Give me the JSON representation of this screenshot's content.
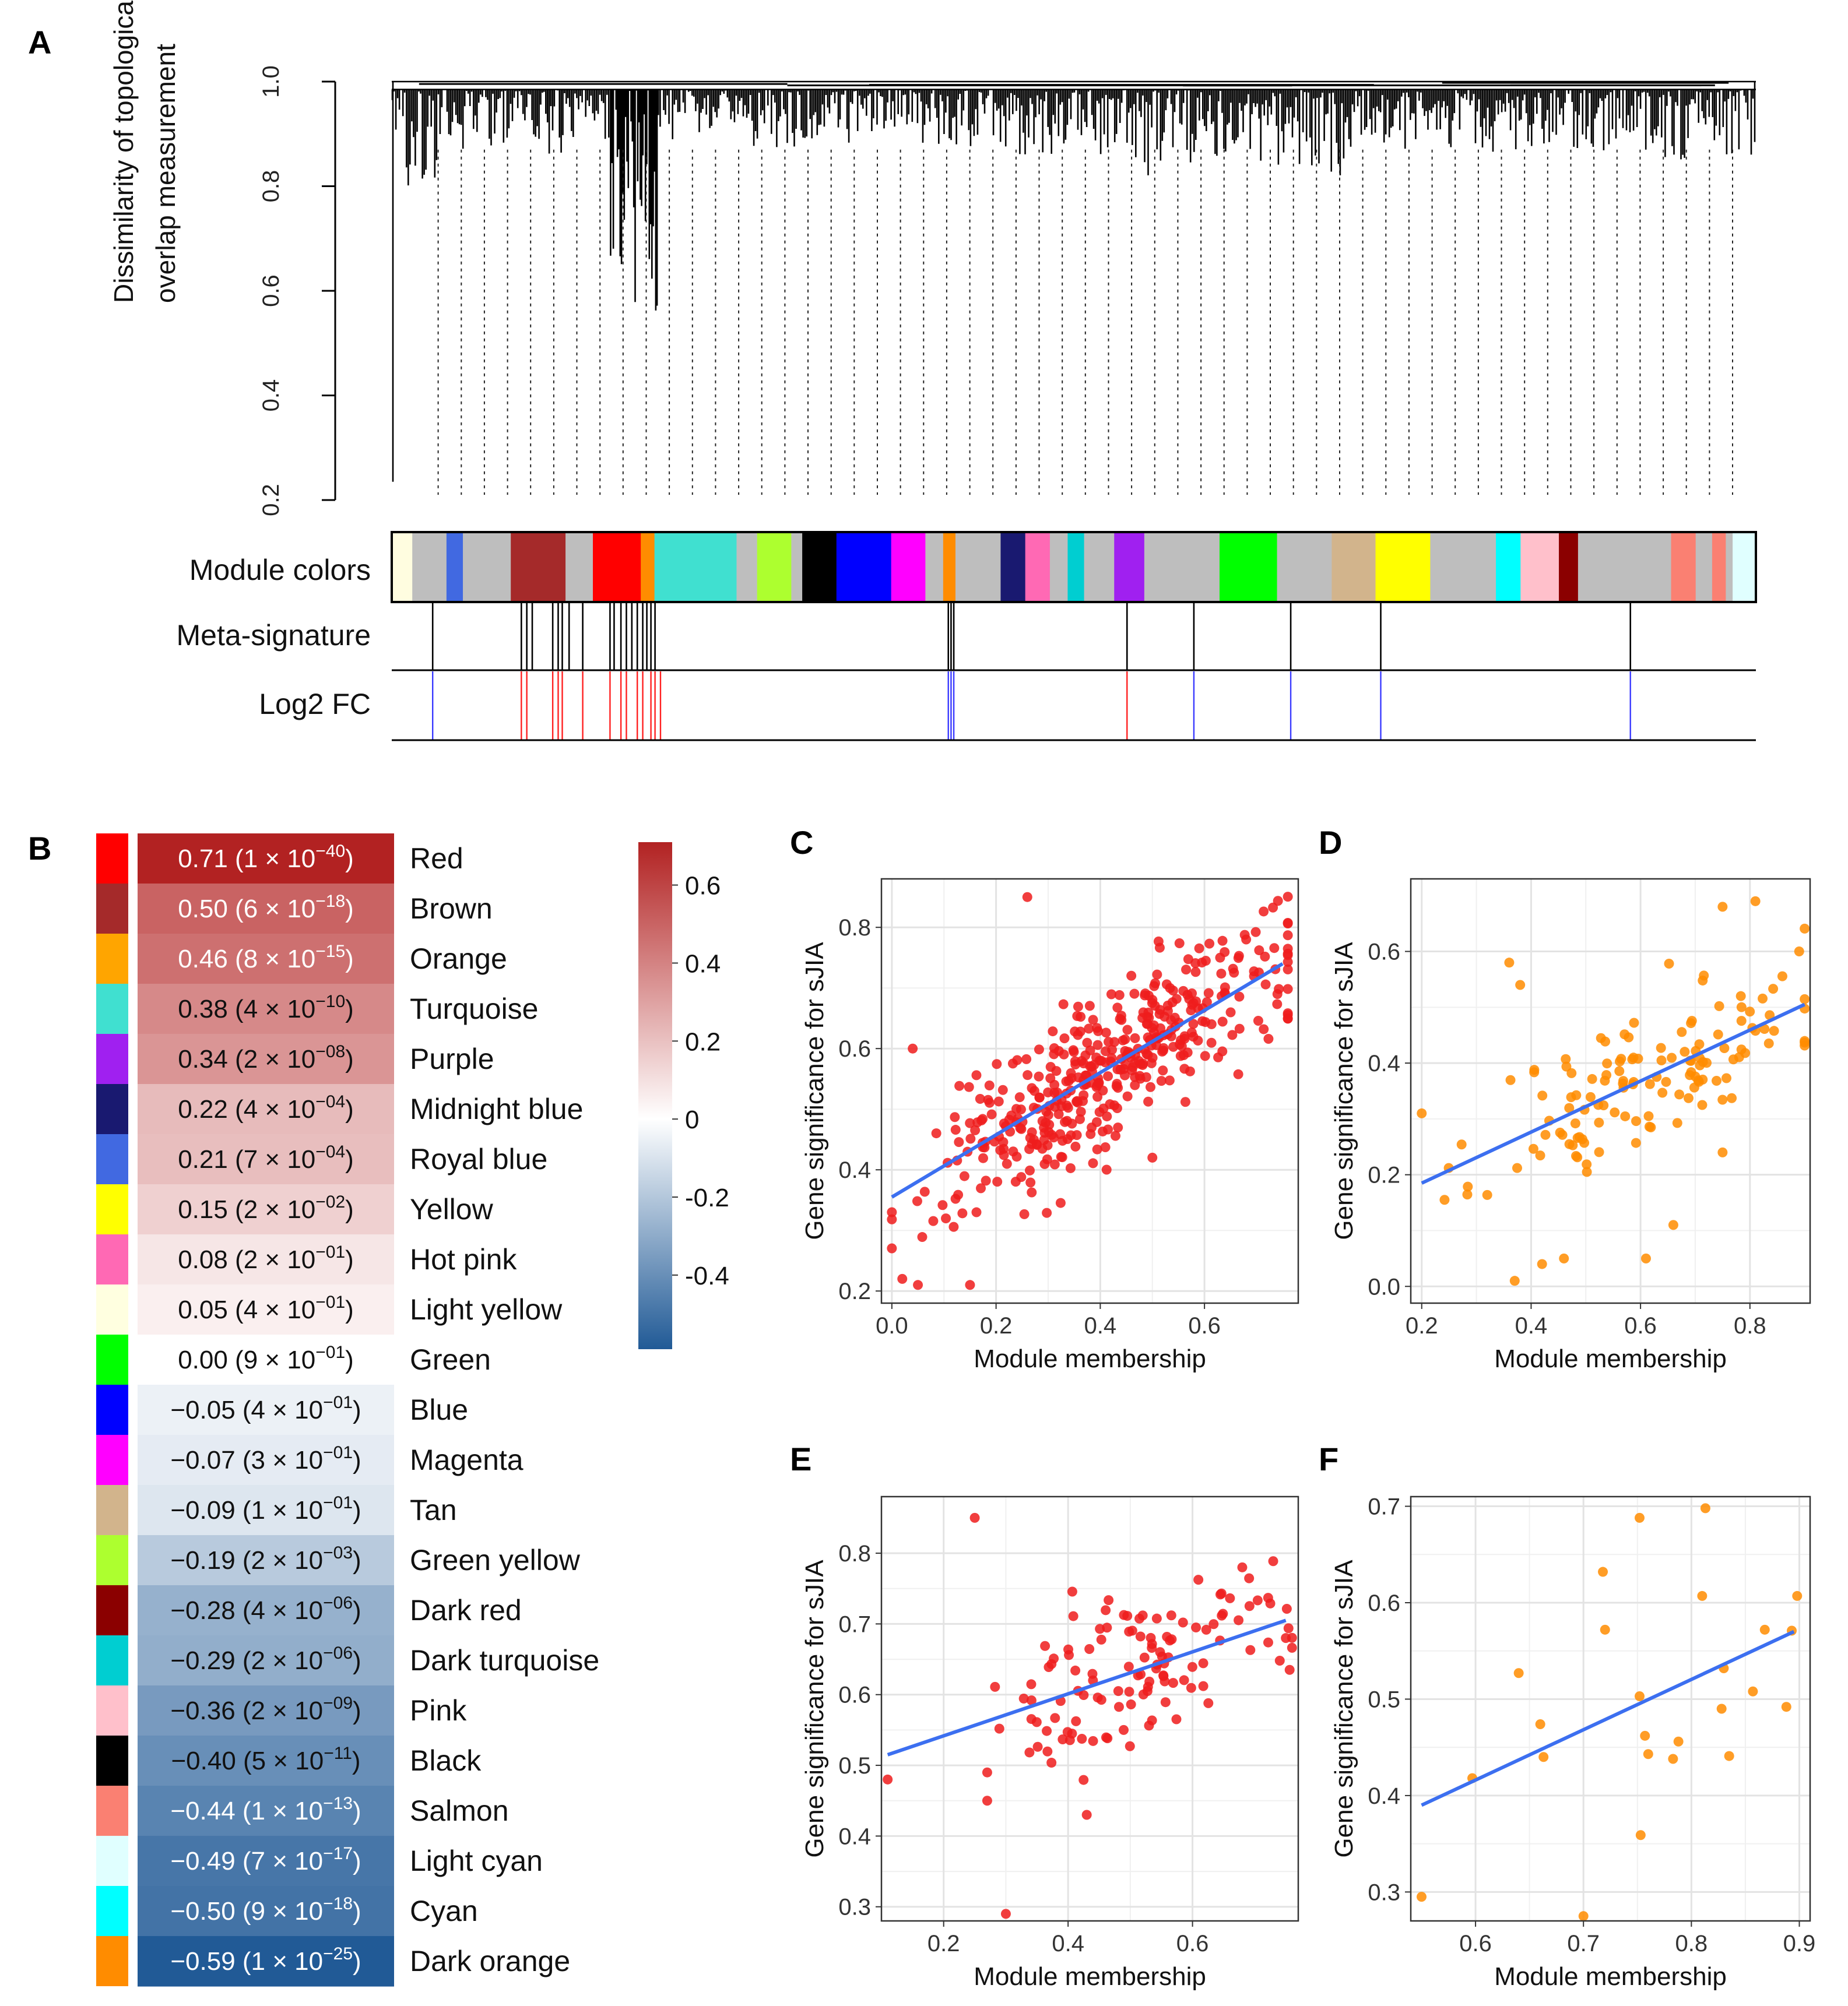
{
  "panels": {
    "a": "A",
    "b": "B",
    "c": "C",
    "d": "D",
    "e": "E",
    "f": "F"
  },
  "dendrogram": {
    "ylabel_line1": "Dissimilarity of topological",
    "ylabel_line2": "overlap measurement",
    "yticks": [
      "0.2",
      "0.4",
      "0.6",
      "0.8",
      "1.0"
    ],
    "track_labels": [
      "Module colors",
      "Meta-signature",
      "Log2 FC"
    ],
    "module_strip": [
      {
        "color": "#fffde0",
        "w": 1.5
      },
      {
        "color": "#bebebe",
        "w": 2.5
      },
      {
        "color": "#4169e1",
        "w": 1.2
      },
      {
        "color": "#bebebe",
        "w": 3.5
      },
      {
        "color": "#a52a2a",
        "w": 4.0
      },
      {
        "color": "#bebebe",
        "w": 2.0
      },
      {
        "color": "#ff0000",
        "w": 3.5
      },
      {
        "color": "#ff8c00",
        "w": 1.0
      },
      {
        "color": "#40e0d0",
        "w": 6.0
      },
      {
        "color": "#bebebe",
        "w": 1.5
      },
      {
        "color": "#adff2f",
        "w": 2.5
      },
      {
        "color": "#bebebe",
        "w": 0.8
      },
      {
        "color": "#000000",
        "w": 2.5
      },
      {
        "color": "#0000ff",
        "w": 4.0
      },
      {
        "color": "#ff00ff",
        "w": 2.5
      },
      {
        "color": "#bebebe",
        "w": 1.3
      },
      {
        "color": "#ff8c00",
        "w": 0.9
      },
      {
        "color": "#bebebe",
        "w": 3.3
      },
      {
        "color": "#191970",
        "w": 1.8
      },
      {
        "color": "#ff69b4",
        "w": 1.8
      },
      {
        "color": "#bebebe",
        "w": 1.3
      },
      {
        "color": "#00ced1",
        "w": 1.2
      },
      {
        "color": "#bebebe",
        "w": 2.2
      },
      {
        "color": "#a020f0",
        "w": 2.2
      },
      {
        "color": "#bebebe",
        "w": 5.5
      },
      {
        "color": "#00ff00",
        "w": 4.2
      },
      {
        "color": "#bebebe",
        "w": 4.0
      },
      {
        "color": "#d2b48c",
        "w": 3.2
      },
      {
        "color": "#ffff00",
        "w": 4.0
      },
      {
        "color": "#bebebe",
        "w": 4.8
      },
      {
        "color": "#00ffff",
        "w": 1.8
      },
      {
        "color": "#ffc0cb",
        "w": 2.8
      },
      {
        "color": "#8b0000",
        "w": 1.4
      },
      {
        "color": "#bebebe",
        "w": 6.8
      },
      {
        "color": "#fa8072",
        "w": 1.8
      },
      {
        "color": "#bebebe",
        "w": 1.2
      },
      {
        "color": "#fa8072",
        "w": 1.0
      },
      {
        "color": "#bebebe",
        "w": 0.5
      },
      {
        "color": "#e0ffff",
        "w": 1.7
      }
    ],
    "meta_signature": [
      0.03,
      0.095,
      0.099,
      0.103,
      0.118,
      0.122,
      0.125,
      0.13,
      0.14,
      0.16,
      0.163,
      0.168,
      0.172,
      0.176,
      0.18,
      0.184,
      0.187,
      0.19,
      0.193,
      0.408,
      0.41,
      0.412,
      0.539,
      0.588,
      0.659,
      0.725,
      0.908
    ],
    "log2fc": [
      {
        "pos": 0.03,
        "dir": "down"
      },
      {
        "pos": 0.095,
        "dir": "up"
      },
      {
        "pos": 0.099,
        "dir": "up"
      },
      {
        "pos": 0.118,
        "dir": "up"
      },
      {
        "pos": 0.122,
        "dir": "up"
      },
      {
        "pos": 0.125,
        "dir": "up"
      },
      {
        "pos": 0.14,
        "dir": "up"
      },
      {
        "pos": 0.16,
        "dir": "up"
      },
      {
        "pos": 0.168,
        "dir": "up"
      },
      {
        "pos": 0.172,
        "dir": "up"
      },
      {
        "pos": 0.18,
        "dir": "up"
      },
      {
        "pos": 0.184,
        "dir": "up"
      },
      {
        "pos": 0.19,
        "dir": "up"
      },
      {
        "pos": 0.193,
        "dir": "up"
      },
      {
        "pos": 0.197,
        "dir": "up"
      },
      {
        "pos": 0.408,
        "dir": "down"
      },
      {
        "pos": 0.41,
        "dir": "down"
      },
      {
        "pos": 0.412,
        "dir": "down"
      },
      {
        "pos": 0.539,
        "dir": "up"
      },
      {
        "pos": 0.588,
        "dir": "down"
      },
      {
        "pos": 0.659,
        "dir": "down"
      },
      {
        "pos": 0.725,
        "dir": "down"
      },
      {
        "pos": 0.908,
        "dir": "down"
      }
    ]
  },
  "heatmap": {
    "rows": [
      {
        "color": "#ff0000",
        "r": "0.71",
        "p": "1 × 10",
        "exp": "−40",
        "name": "Red",
        "value": 0.71
      },
      {
        "color": "#a52a2a",
        "r": "0.50",
        "p": "6 × 10",
        "exp": "−18",
        "name": "Brown",
        "value": 0.5
      },
      {
        "color": "#ffa500",
        "r": "0.46",
        "p": "8 × 10",
        "exp": "−15",
        "name": "Orange",
        "value": 0.46
      },
      {
        "color": "#40e0d0",
        "r": "0.38",
        "p": "4 × 10",
        "exp": "−10",
        "name": "Turquoise",
        "value": 0.38
      },
      {
        "color": "#a020f0",
        "r": "0.34",
        "p": "2 × 10",
        "exp": "−08",
        "name": "Purple",
        "value": 0.34
      },
      {
        "color": "#191970",
        "r": "0.22",
        "p": "4 × 10",
        "exp": "−04",
        "name": "Midnight blue",
        "value": 0.22
      },
      {
        "color": "#4169e1",
        "r": "0.21",
        "p": "7 × 10",
        "exp": "−04",
        "name": "Royal blue",
        "value": 0.21
      },
      {
        "color": "#ffff00",
        "r": "0.15",
        "p": "2 × 10",
        "exp": "−02",
        "name": "Yellow",
        "value": 0.15
      },
      {
        "color": "#ff69b4",
        "r": "0.08",
        "p": "2 × 10",
        "exp": "−01",
        "name": "Hot pink",
        "value": 0.08
      },
      {
        "color": "#ffffe0",
        "r": "0.05",
        "p": "4 × 10",
        "exp": "−01",
        "name": "Light yellow",
        "value": 0.05
      },
      {
        "color": "#00ff00",
        "r": "0.00",
        "p": "9 × 10",
        "exp": "−01",
        "name": "Green",
        "value": 0.0
      },
      {
        "color": "#0000ff",
        "r": "−0.05",
        "p": "4 × 10",
        "exp": "−01",
        "name": "Blue",
        "value": -0.05
      },
      {
        "color": "#ff00ff",
        "r": "−0.07",
        "p": "3 × 10",
        "exp": "−01",
        "name": "Magenta",
        "value": -0.07
      },
      {
        "color": "#d2b48c",
        "r": "−0.09",
        "p": "1 × 10",
        "exp": "−01",
        "name": "Tan",
        "value": -0.09
      },
      {
        "color": "#adff2f",
        "r": "−0.19",
        "p": "2 × 10",
        "exp": "−03",
        "name": "Green yellow",
        "value": -0.19
      },
      {
        "color": "#8b0000",
        "r": "−0.28",
        "p": "4 × 10",
        "exp": "−06",
        "name": "Dark red",
        "value": -0.28
      },
      {
        "color": "#00ced1",
        "r": "−0.29",
        "p": "2 × 10",
        "exp": "−06",
        "name": "Dark turquoise",
        "value": -0.29
      },
      {
        "color": "#ffc0cb",
        "r": "−0.36",
        "p": "2 × 10",
        "exp": "−09",
        "name": "Pink",
        "value": -0.36
      },
      {
        "color": "#000000",
        "r": "−0.40",
        "p": "5 × 10",
        "exp": "−11",
        "name": "Black",
        "value": -0.4
      },
      {
        "color": "#fa8072",
        "r": "−0.44",
        "p": "1 × 10",
        "exp": "−13",
        "name": "Salmon",
        "value": -0.44
      },
      {
        "color": "#e0ffff",
        "r": "−0.49",
        "p": "7 × 10",
        "exp": "−17",
        "name": "Light cyan",
        "value": -0.49
      },
      {
        "color": "#00ffff",
        "r": "−0.50",
        "p": "9 × 10",
        "exp": "−18",
        "name": "Cyan",
        "value": -0.5
      },
      {
        "color": "#ff8c00",
        "r": "−0.59",
        "p": "1 × 10",
        "exp": "−25",
        "name": "Dark orange",
        "value": -0.59
      }
    ],
    "colorbar_ticks": [
      "0.6",
      "0.4",
      "0.2",
      "0",
      "-0.2",
      "-0.4"
    ],
    "colorbar_values": [
      0.6,
      0.4,
      0.2,
      0,
      -0.2,
      -0.4
    ],
    "colorbar_range": [
      -0.59,
      0.71
    ]
  },
  "chart_data": [
    {
      "type": "scatter",
      "panel": "C",
      "xlabel": "Module membership",
      "ylabel": "Gene significance for sJIA",
      "xlim": [
        -0.02,
        0.78
      ],
      "ylim": [
        0.18,
        0.88
      ],
      "xticks": [
        0.0,
        0.2,
        0.4,
        0.6
      ],
      "xtick_labels": [
        "0.0",
        "0.2",
        "0.4",
        "0.6"
      ],
      "yticks": [
        0.2,
        0.4,
        0.6,
        0.8
      ],
      "ytick_labels": [
        "0.2",
        "0.4",
        "0.6",
        "0.8"
      ],
      "point_color": "#ee1c1c",
      "fit": {
        "x0": 0.0,
        "y0": 0.355,
        "x1": 0.75,
        "y1": 0.74
      },
      "point_count": 420,
      "seed": 7,
      "points": [
        [
          0.26,
          0.85
        ],
        [
          0.0,
          0.33
        ],
        [
          0.02,
          0.22
        ],
        [
          0.05,
          0.21
        ],
        [
          0.15,
          0.21
        ],
        [
          0.04,
          0.6
        ],
        [
          0.68,
          0.78
        ],
        [
          0.74,
          0.69
        ],
        [
          0.63,
          0.75
        ],
        [
          0.5,
          0.42
        ]
      ]
    },
    {
      "type": "scatter",
      "panel": "D",
      "xlabel": "Module membership",
      "ylabel": "Gene significance for sJIA",
      "xlim": [
        0.18,
        0.91
      ],
      "ylim": [
        -0.03,
        0.73
      ],
      "xticks": [
        0.2,
        0.4,
        0.6,
        0.8
      ],
      "xtick_labels": [
        "0.2",
        "0.4",
        "0.6",
        "0.8"
      ],
      "yticks": [
        0.0,
        0.2,
        0.4,
        0.6
      ],
      "ytick_labels": [
        "0.0",
        "0.2",
        "0.4",
        "0.6"
      ],
      "point_color": "#ff8c00",
      "fit": {
        "x0": 0.2,
        "y0": 0.185,
        "x1": 0.9,
        "y1": 0.505
      },
      "point_count": 130,
      "seed": 11,
      "points": [
        [
          0.2,
          0.31
        ],
        [
          0.36,
          0.58
        ],
        [
          0.38,
          0.54
        ],
        [
          0.37,
          0.01
        ],
        [
          0.42,
          0.04
        ],
        [
          0.46,
          0.05
        ],
        [
          0.61,
          0.05
        ],
        [
          0.66,
          0.11
        ],
        [
          0.81,
          0.69
        ],
        [
          0.75,
          0.68
        ],
        [
          0.89,
          0.6
        ],
        [
          0.75,
          0.24
        ]
      ]
    },
    {
      "type": "scatter",
      "panel": "E",
      "xlabel": "Module membership",
      "ylabel": "Gene significance for sJIA",
      "xlim": [
        0.1,
        0.77
      ],
      "ylim": [
        0.28,
        0.88
      ],
      "xticks": [
        0.2,
        0.4,
        0.6
      ],
      "xtick_labels": [
        "0.2",
        "0.4",
        "0.6"
      ],
      "yticks": [
        0.3,
        0.4,
        0.5,
        0.6,
        0.7,
        0.8
      ],
      "ytick_labels": [
        "0.3",
        "0.4",
        "0.5",
        "0.6",
        "0.7",
        "0.8"
      ],
      "point_color": "#ee1c1c",
      "fit": {
        "x0": 0.11,
        "y0": 0.515,
        "x1": 0.75,
        "y1": 0.705
      },
      "point_count": 120,
      "seed": 19,
      "points": [
        [
          0.25,
          0.85
        ],
        [
          0.3,
          0.29
        ],
        [
          0.11,
          0.48
        ],
        [
          0.43,
          0.43
        ],
        [
          0.27,
          0.45
        ],
        [
          0.27,
          0.49
        ],
        [
          0.68,
          0.78
        ],
        [
          0.75,
          0.68
        ]
      ]
    },
    {
      "type": "scatter",
      "panel": "F",
      "xlabel": "Module membership",
      "ylabel": "Gene significance for sJIA",
      "xlim": [
        0.54,
        0.91
      ],
      "ylim": [
        0.27,
        0.71
      ],
      "xticks": [
        0.6,
        0.7,
        0.8,
        0.9
      ],
      "xtick_labels": [
        "0.6",
        "0.7",
        "0.8",
        "0.9"
      ],
      "yticks": [
        0.3,
        0.4,
        0.5,
        0.6,
        0.7
      ],
      "ytick_labels": [
        "0.3",
        "0.4",
        "0.5",
        "0.6",
        "0.7"
      ],
      "point_color": "#ff8c00",
      "fit": {
        "x0": 0.55,
        "y0": 0.39,
        "x1": 0.895,
        "y1": 0.57
      },
      "point_count": 0,
      "seed": 0,
      "points": [
        [
          0.55,
          0.295
        ],
        [
          0.597,
          0.418
        ],
        [
          0.64,
          0.527
        ],
        [
          0.66,
          0.474
        ],
        [
          0.663,
          0.44
        ],
        [
          0.7,
          0.275
        ],
        [
          0.718,
          0.632
        ],
        [
          0.72,
          0.572
        ],
        [
          0.752,
          0.688
        ],
        [
          0.752,
          0.503
        ],
        [
          0.753,
          0.359
        ],
        [
          0.757,
          0.462
        ],
        [
          0.76,
          0.443
        ],
        [
          0.783,
          0.438
        ],
        [
          0.788,
          0.456
        ],
        [
          0.81,
          0.607
        ],
        [
          0.813,
          0.698
        ],
        [
          0.828,
          0.49
        ],
        [
          0.83,
          0.532
        ],
        [
          0.835,
          0.441
        ],
        [
          0.857,
          0.508
        ],
        [
          0.868,
          0.572
        ],
        [
          0.888,
          0.492
        ],
        [
          0.893,
          0.571
        ],
        [
          0.898,
          0.607
        ]
      ]
    }
  ]
}
